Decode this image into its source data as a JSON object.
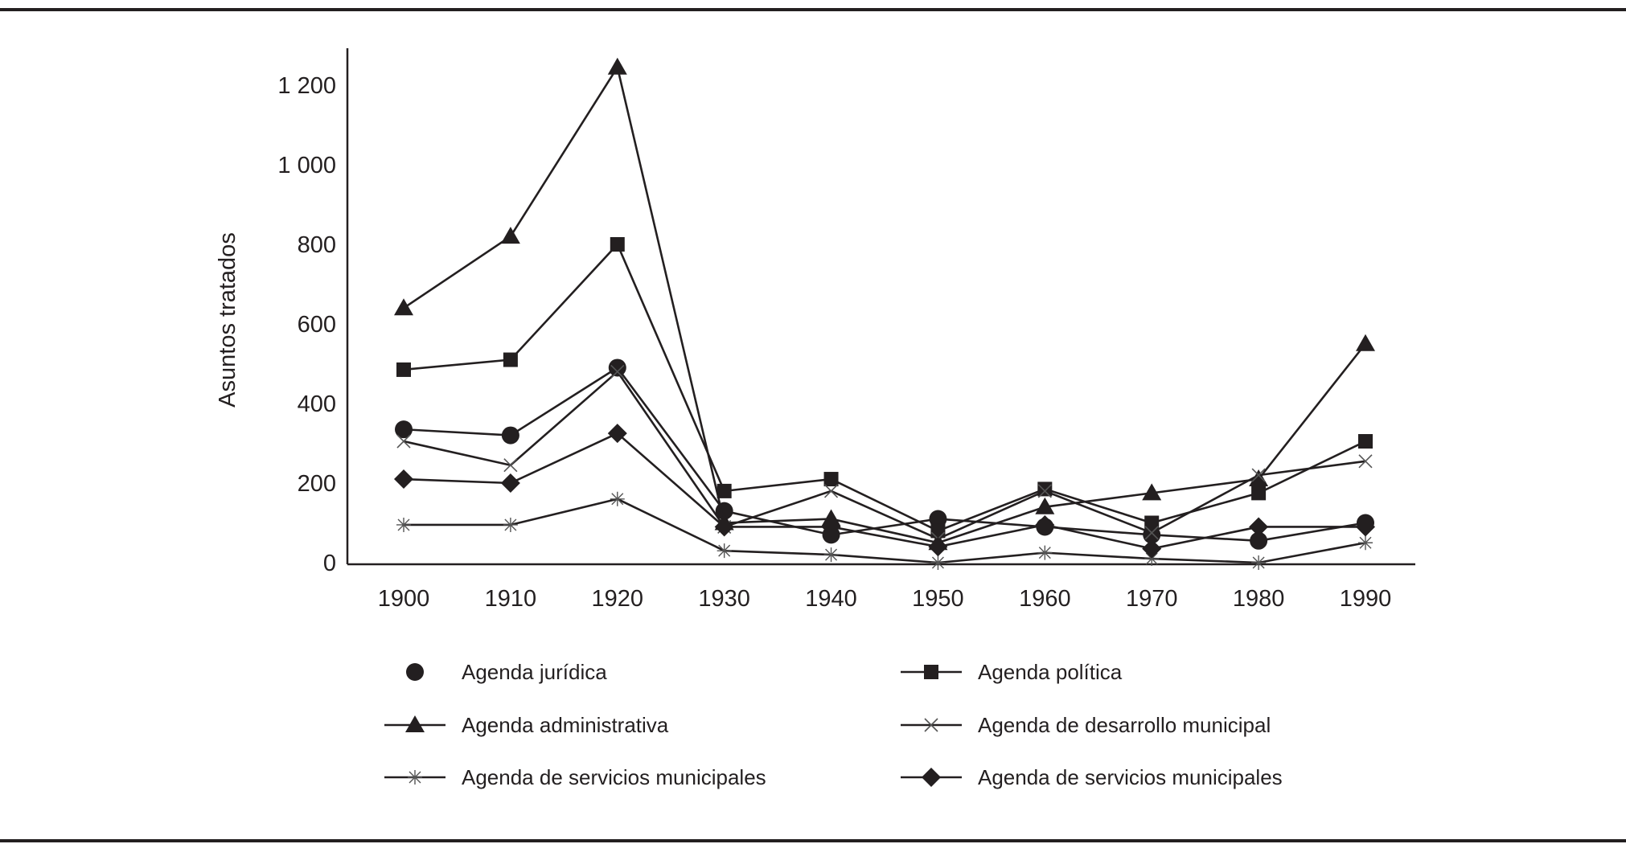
{
  "chart_data": {
    "type": "line",
    "title": "",
    "xlabel": "",
    "ylabel": "Asuntos tratados",
    "x": [
      1900,
      1910,
      1920,
      1930,
      1940,
      1950,
      1960,
      1970,
      1980,
      1990
    ],
    "x_tick_labels": [
      "1900",
      "1910",
      "1920",
      "1930",
      "1940",
      "1950",
      "1960",
      "1970",
      "1980",
      "1990"
    ],
    "y_tick_labels": [
      "0",
      "200",
      "400",
      "600",
      "800",
      "1 000",
      "1 200"
    ],
    "y_ticks": [
      0,
      200,
      400,
      600,
      800,
      1000,
      1200
    ],
    "ylim": [
      0,
      1300
    ],
    "grid": false,
    "legend_placement": "bottom",
    "series": [
      {
        "name": "Agenda jurídica",
        "marker": "circle",
        "legend_line": false,
        "values": [
          335,
          320,
          490,
          130,
          70,
          110,
          90,
          70,
          55,
          100
        ]
      },
      {
        "name": "Agenda política",
        "marker": "square",
        "legend_line": true,
        "values": [
          485,
          510,
          800,
          180,
          210,
          80,
          185,
          100,
          175,
          305
        ]
      },
      {
        "name": "Agenda administrativa",
        "marker": "triangle",
        "legend_line": true,
        "values": [
          640,
          820,
          1245,
          100,
          110,
          50,
          140,
          175,
          210,
          550
        ]
      },
      {
        "name": "Agenda de desarrollo municipal",
        "marker": "x",
        "legend_line": true,
        "values": [
          305,
          245,
          480,
          90,
          180,
          60,
          180,
          75,
          220,
          255
        ]
      },
      {
        "name": "Agenda de servicios municipales",
        "marker": "asterisk",
        "legend_line": true,
        "values": [
          95,
          95,
          160,
          30,
          20,
          0,
          25,
          10,
          0,
          50
        ]
      },
      {
        "name": "Agenda de servicios municipales",
        "marker": "diamond",
        "legend_line": true,
        "values": [
          210,
          200,
          325,
          90,
          90,
          40,
          95,
          35,
          90,
          90
        ]
      }
    ]
  }
}
